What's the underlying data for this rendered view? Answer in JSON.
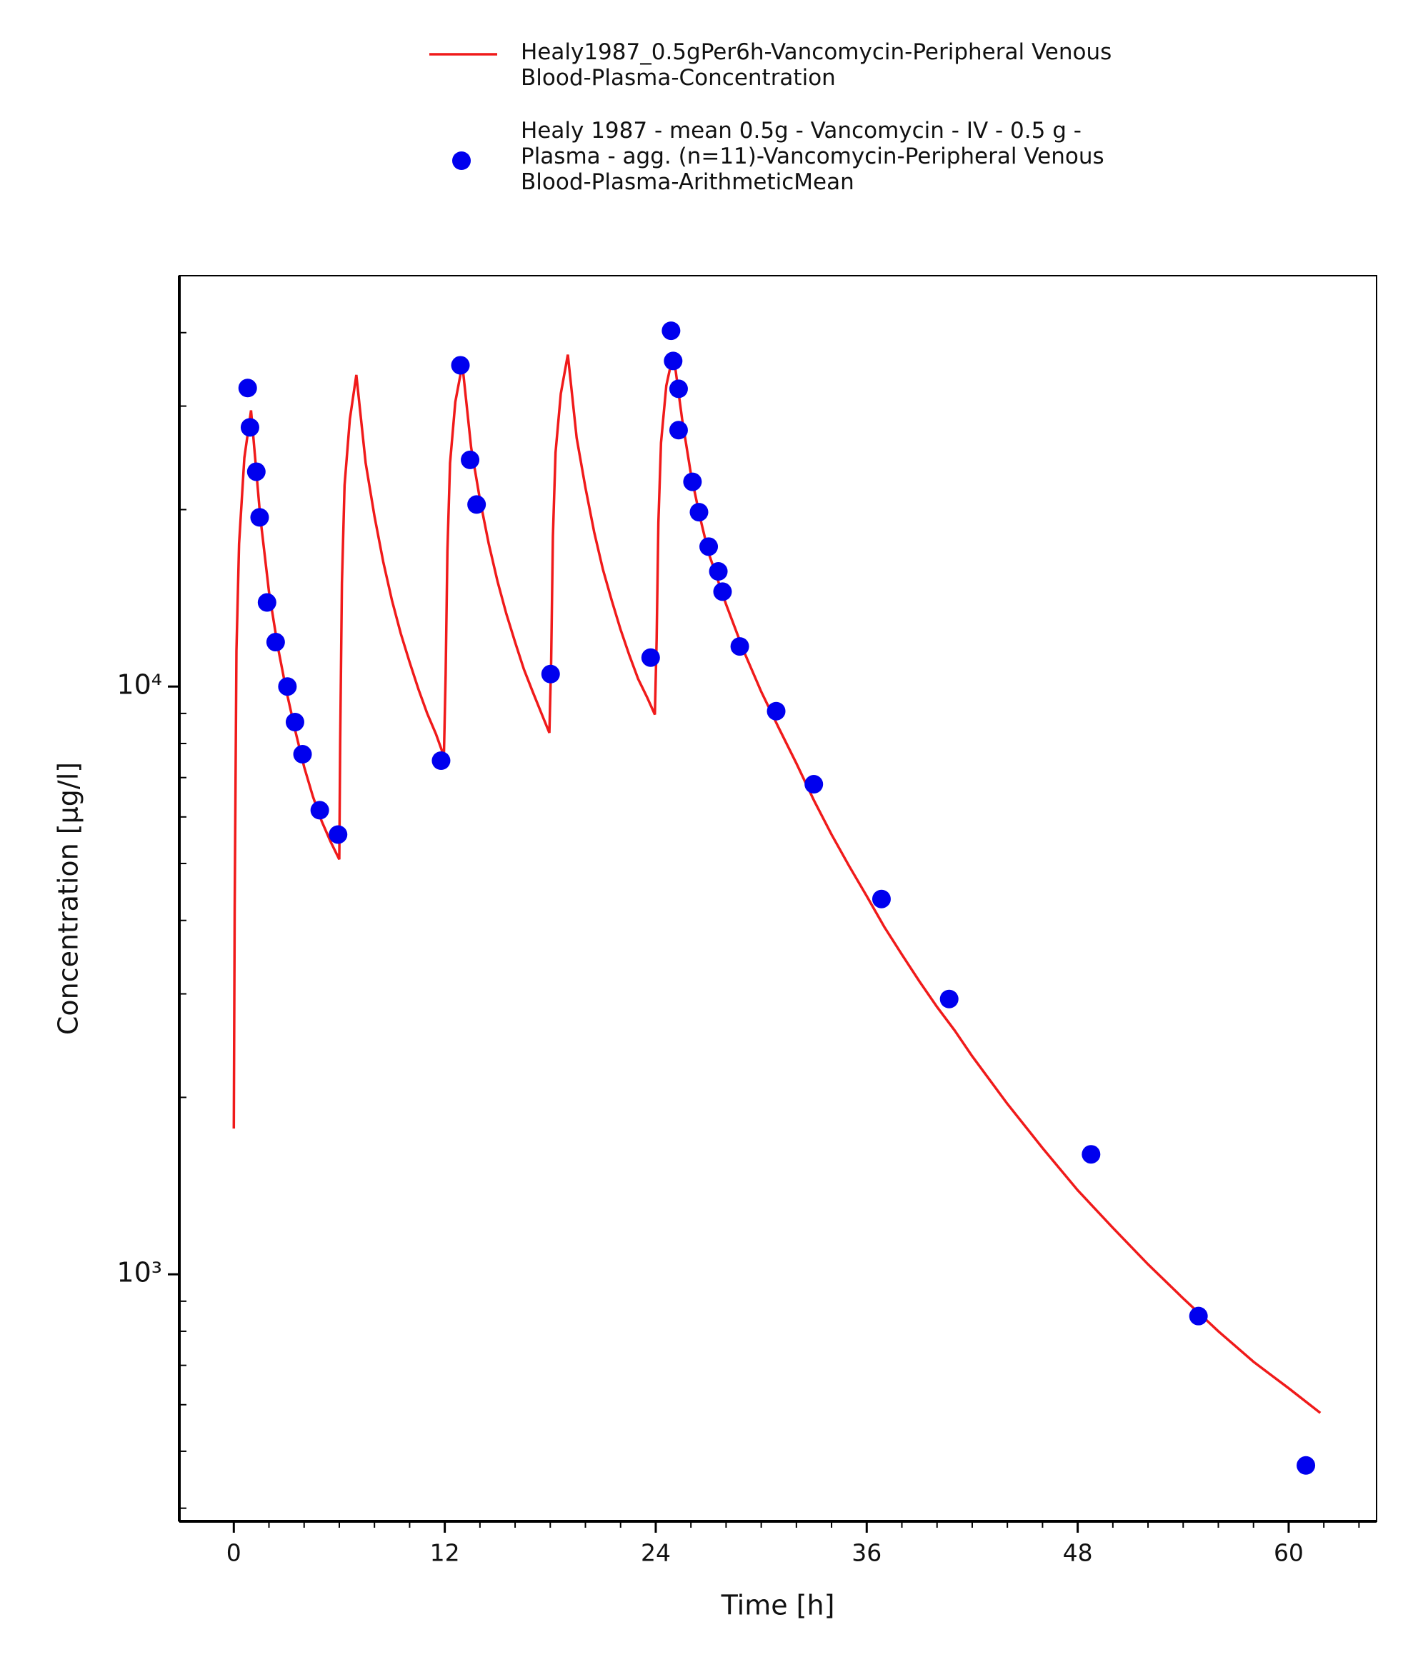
{
  "chart_data": {
    "type": "line-scatter",
    "xlabel": "Time [h]",
    "ylabel": "Concentration [µg/l]",
    "xlim": [
      -3.1,
      65
    ],
    "ylim": [
      380,
      50000
    ],
    "yscale": "log",
    "xticks": [
      0,
      12,
      24,
      36,
      48,
      60
    ],
    "xminorticks": [
      2,
      4,
      6,
      8,
      10,
      14,
      16,
      18,
      20,
      22,
      26,
      28,
      30,
      32,
      34,
      38,
      40,
      42,
      44,
      46,
      50,
      52,
      54,
      56,
      58,
      62,
      64
    ],
    "yticks": [
      {
        "value": 1000,
        "label": "10³"
      },
      {
        "value": 10000,
        "label": "10⁴"
      }
    ],
    "yminorticks": [
      400,
      500,
      600,
      700,
      800,
      900,
      2000,
      3000,
      4000,
      5000,
      6000,
      7000,
      8000,
      9000,
      20000,
      30000,
      40000
    ],
    "legend": "top-outside",
    "series": [
      {
        "name": "Healy1987_0.5gPer6h-Vancomycin-Peripheral Venous Blood-Plasma-Concentration",
        "kind": "line",
        "color": "#f01a1a",
        "x": [
          0,
          0.05,
          0.15,
          0.3,
          0.6,
          0.98,
          1.5,
          2,
          2.5,
          3,
          3.5,
          4,
          4.5,
          5,
          5.5,
          6,
          6.05,
          6.15,
          6.3,
          6.6,
          6.97,
          7.5,
          8,
          8.5,
          9,
          9.5,
          10,
          10.5,
          11,
          11.5,
          11.95,
          12.05,
          12.15,
          12.3,
          12.6,
          13,
          13.5,
          14,
          14.5,
          15,
          15.5,
          16,
          16.5,
          17,
          17.5,
          17.95,
          18.05,
          18.15,
          18.3,
          18.6,
          19,
          19.5,
          20,
          20.5,
          21,
          21.5,
          22,
          22.5,
          23,
          23.5,
          23.95,
          24.05,
          24.15,
          24.3,
          24.6,
          25,
          25.5,
          26,
          26.5,
          27,
          28,
          29,
          30,
          31,
          32,
          33,
          34,
          35,
          36,
          37,
          38,
          39,
          40,
          41,
          42,
          44,
          46,
          48,
          50,
          52,
          54,
          56,
          58,
          60,
          61.8
        ],
        "values": [
          1770,
          4200,
          11500,
          17500,
          24500,
          29500,
          19500,
          14500,
          11700,
          9800,
          8400,
          7300,
          6500,
          5900,
          5450,
          5080,
          8000,
          15000,
          22000,
          28500,
          33900,
          24000,
          19500,
          16300,
          14000,
          12300,
          11000,
          9900,
          9000,
          8300,
          7610,
          10500,
          17000,
          24000,
          30500,
          35300,
          25500,
          20800,
          17500,
          15100,
          13300,
          11900,
          10700,
          9800,
          9000,
          8340,
          11000,
          18000,
          25000,
          31500,
          36700,
          26500,
          21800,
          18300,
          15800,
          14000,
          12500,
          11300,
          10300,
          9600,
          8960,
          12000,
          19000,
          26000,
          32500,
          36900,
          28500,
          23000,
          19500,
          16900,
          13800,
          11500,
          9800,
          8500,
          7400,
          6400,
          5600,
          4950,
          4400,
          3900,
          3500,
          3150,
          2850,
          2600,
          2350,
          1950,
          1640,
          1390,
          1200,
          1040,
          910,
          800,
          710,
          640,
          581
        ]
      },
      {
        "name": "Healy 1987 - mean 0.5g - Vancomycin - IV - 0.5 g - Plasma - agg. (n=11)-Vancomycin-Peripheral Venous Blood-Plasma-ArithmeticMean",
        "kind": "scatter",
        "color": "#0000ee",
        "x": [
          0.79,
          0.92,
          1.28,
          1.47,
          1.89,
          2.38,
          3.05,
          3.48,
          3.91,
          4.89,
          5.93,
          11.79,
          12.89,
          13.44,
          13.81,
          18.02,
          23.71,
          24.87,
          24.99,
          25.3,
          25.3,
          26.09,
          26.46,
          27.01,
          27.56,
          27.8,
          28.78,
          30.85,
          32.99,
          36.84,
          40.69,
          48.76,
          54.87,
          60.98
        ],
        "values": [
          32200,
          27600,
          23200,
          19400,
          13900,
          11900,
          10000,
          8700,
          7670,
          6160,
          5600,
          7480,
          35200,
          24300,
          20400,
          10500,
          11200,
          40300,
          35800,
          32100,
          27300,
          22300,
          19800,
          17300,
          15700,
          14500,
          11700,
          9080,
          6820,
          4350,
          2940,
          1600,
          849,
          473
        ]
      }
    ]
  }
}
